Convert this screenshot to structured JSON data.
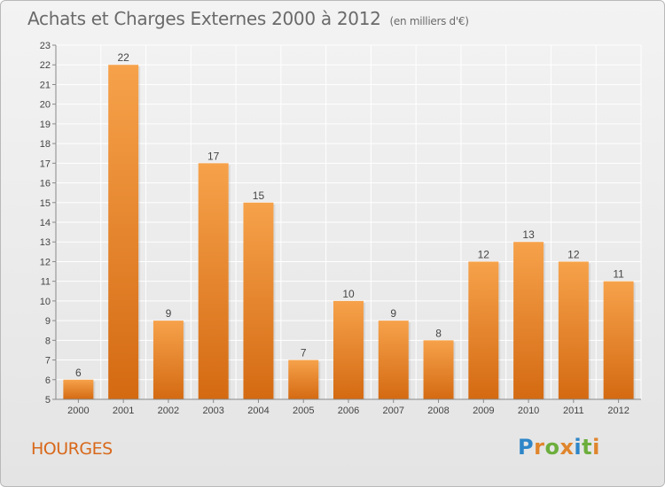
{
  "header": {
    "title": "Achats et Charges Externes 2000 à 2012",
    "subtitle": "(en milliers d'€)"
  },
  "footer": {
    "commune": "HOURGES",
    "logo_letters": [
      {
        "ch": "P",
        "color": "#2e86c8"
      },
      {
        "ch": "r",
        "color": "#e0852c"
      },
      {
        "ch": "o",
        "color": "#6cae3c"
      },
      {
        "ch": "x",
        "color": "#e0852c"
      },
      {
        "ch": "i",
        "color": "#2e86c8"
      },
      {
        "ch": "t",
        "color": "#6cae3c"
      },
      {
        "ch": "i",
        "color": "#e0852c"
      }
    ]
  },
  "colors": {
    "bar_light": "#f6a24b",
    "bar_dark": "#d46a12",
    "axis": "#888888",
    "grid": "#ffffff",
    "commune": "#d8681a"
  },
  "chart_data": {
    "type": "bar",
    "title": "Achats et Charges Externes 2000 à 2012",
    "subtitle": "(en milliers d'€)",
    "categories": [
      "2000",
      "2001",
      "2002",
      "2003",
      "2004",
      "2005",
      "2006",
      "2007",
      "2008",
      "2009",
      "2010",
      "2011",
      "2012"
    ],
    "values": [
      6,
      22,
      9,
      17,
      15,
      7,
      10,
      9,
      8,
      12,
      13,
      12,
      11
    ],
    "ylim": [
      5,
      23
    ],
    "yticks": [
      5,
      6,
      7,
      8,
      9,
      10,
      11,
      12,
      13,
      14,
      15,
      16,
      17,
      18,
      19,
      20,
      21,
      22,
      23
    ],
    "xlabel": "",
    "ylabel": "",
    "grid": true,
    "legend": "none"
  }
}
